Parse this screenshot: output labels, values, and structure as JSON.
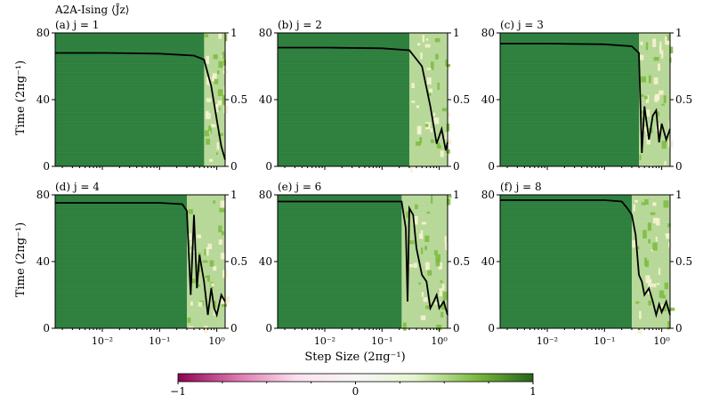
{
  "figure": {
    "title": "A2A-Ising ⟨J̄z⟩",
    "ylabel": "Time (2πg⁻¹)",
    "xlabel": "Step Size (2πg⁻¹)",
    "right_ticks": [
      "0",
      "0.5",
      "1"
    ],
    "colorbar": {
      "ticks": [
        "−1",
        "0",
        "1"
      ],
      "range": [
        -1,
        1
      ],
      "colors": [
        "#8e0152",
        "#de77ae",
        "#fde0ef",
        "#f7f7f7",
        "#e6f5d0",
        "#7fbc41",
        "#276419"
      ]
    }
  },
  "chart_data": [
    {
      "type": "heatmap",
      "panel": "(a)",
      "label": "(a) j = 1",
      "j": 1,
      "xscale": "log",
      "xlim": [
        0.0015,
        1.4
      ],
      "ylim": [
        0,
        80
      ],
      "y2lim": [
        0,
        1
      ],
      "x_ticks": [],
      "y_ticks": [
        "0",
        "40",
        "80"
      ],
      "overlay_line": {
        "x": [
          0.0015,
          0.01,
          0.1,
          0.4,
          0.6,
          0.8,
          1.0,
          1.2,
          1.4
        ],
        "y": [
          0.85,
          0.85,
          0.845,
          0.83,
          0.8,
          0.6,
          0.35,
          0.15,
          0.05
        ]
      }
    },
    {
      "type": "heatmap",
      "panel": "(b)",
      "label": "(b) j = 2",
      "j": 2,
      "xscale": "log",
      "xlim": [
        0.0015,
        1.4
      ],
      "ylim": [
        0,
        80
      ],
      "y2lim": [
        0,
        1
      ],
      "x_ticks": [],
      "y_ticks": [
        "0",
        "40",
        "80"
      ],
      "overlay_line": {
        "x": [
          0.0015,
          0.01,
          0.1,
          0.3,
          0.5,
          0.7,
          0.9,
          1.1,
          1.3,
          1.4
        ],
        "y": [
          0.89,
          0.89,
          0.885,
          0.87,
          0.75,
          0.45,
          0.17,
          0.28,
          0.12,
          0.18
        ]
      }
    },
    {
      "type": "heatmap",
      "panel": "(c)",
      "label": "(c) j = 3",
      "j": 3,
      "xscale": "log",
      "xlim": [
        0.0015,
        1.4
      ],
      "ylim": [
        0,
        80
      ],
      "y2lim": [
        0,
        1
      ],
      "x_ticks": [],
      "y_ticks": [
        "0",
        "40",
        "80"
      ],
      "overlay_line": {
        "x": [
          0.0015,
          0.01,
          0.1,
          0.3,
          0.4,
          0.45,
          0.5,
          0.6,
          0.7,
          0.8,
          0.9,
          1.0,
          1.2,
          1.4
        ],
        "y": [
          0.92,
          0.92,
          0.915,
          0.9,
          0.85,
          0.1,
          0.45,
          0.2,
          0.38,
          0.42,
          0.18,
          0.32,
          0.2,
          0.28
        ]
      }
    },
    {
      "type": "heatmap",
      "panel": "(d)",
      "label": "(d) j = 4",
      "j": 4,
      "xscale": "log",
      "xlim": [
        0.0015,
        1.4
      ],
      "ylim": [
        0,
        80
      ],
      "y2lim": [
        0,
        1
      ],
      "x_ticks": [
        "10⁻²",
        "10⁻¹",
        "10⁰"
      ],
      "y_ticks": [
        "0",
        "40",
        "80"
      ],
      "overlay_line": {
        "x": [
          0.0015,
          0.01,
          0.1,
          0.25,
          0.3,
          0.35,
          0.4,
          0.45,
          0.5,
          0.6,
          0.7,
          0.8,
          0.9,
          1.0,
          1.2,
          1.4
        ],
        "y": [
          0.94,
          0.94,
          0.94,
          0.93,
          0.88,
          0.25,
          0.85,
          0.3,
          0.55,
          0.35,
          0.1,
          0.3,
          0.15,
          0.1,
          0.25,
          0.2
        ]
      }
    },
    {
      "type": "heatmap",
      "panel": "(e)",
      "label": "(e) j = 6",
      "j": 6,
      "xscale": "log",
      "xlim": [
        0.0015,
        1.4
      ],
      "ylim": [
        0,
        80
      ],
      "y2lim": [
        0,
        1
      ],
      "x_ticks": [
        "10⁻²",
        "10⁻¹",
        "10⁰"
      ],
      "y_ticks": [
        "0",
        "40",
        "80"
      ],
      "overlay_line": {
        "x": [
          0.0015,
          0.01,
          0.1,
          0.22,
          0.26,
          0.28,
          0.3,
          0.35,
          0.4,
          0.5,
          0.6,
          0.7,
          0.8,
          0.9,
          1.0,
          1.2,
          1.4
        ],
        "y": [
          0.95,
          0.95,
          0.95,
          0.95,
          0.75,
          0.2,
          0.9,
          0.85,
          0.6,
          0.4,
          0.35,
          0.15,
          0.2,
          0.25,
          0.15,
          0.2,
          0.1
        ]
      }
    },
    {
      "type": "heatmap",
      "panel": "(f)",
      "label": "(f) j = 8",
      "j": 8,
      "xscale": "log",
      "xlim": [
        0.0015,
        1.4
      ],
      "ylim": [
        0,
        80
      ],
      "y2lim": [
        0,
        1
      ],
      "x_ticks": [
        "10⁻²",
        "10⁻¹",
        "10⁰"
      ],
      "y_ticks": [
        "0",
        "40",
        "80"
      ],
      "overlay_line": {
        "x": [
          0.0015,
          0.01,
          0.1,
          0.2,
          0.25,
          0.3,
          0.35,
          0.4,
          0.45,
          0.5,
          0.6,
          0.7,
          0.8,
          0.9,
          1.0,
          1.2,
          1.4
        ],
        "y": [
          0.96,
          0.96,
          0.96,
          0.95,
          0.9,
          0.85,
          0.7,
          0.4,
          0.35,
          0.25,
          0.3,
          0.2,
          0.1,
          0.18,
          0.12,
          0.2,
          0.1
        ]
      }
    }
  ]
}
